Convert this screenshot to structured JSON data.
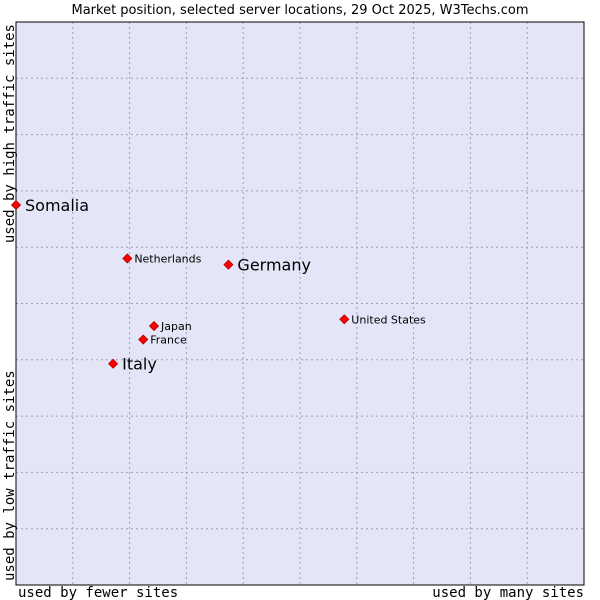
{
  "chart_data": {
    "type": "scatter",
    "title": "Market position, selected server locations, 29 Oct 2025, W3Techs.com",
    "xlabel_low": "used by fewer sites",
    "xlabel_high": "used by many sites",
    "ylabel_low": "used by low traffic sites",
    "ylabel_high": "used by high traffic sites",
    "xlim": [
      0,
      100
    ],
    "ylim": [
      0,
      100
    ],
    "grid": true,
    "colors": {
      "plot_background": "#e4e6f8",
      "grid": "#a0a0b4",
      "border": "#000000",
      "marker": "#ff0000",
      "marker_edge": "#aa0000"
    },
    "points": [
      {
        "name": "Somalia",
        "x": 0.0,
        "y": 67.5,
        "emphasis": "major"
      },
      {
        "name": "Netherlands",
        "x": 19.6,
        "y": 58.0,
        "emphasis": "minor"
      },
      {
        "name": "Germany",
        "x": 37.4,
        "y": 56.9,
        "emphasis": "major"
      },
      {
        "name": "United States",
        "x": 57.8,
        "y": 47.2,
        "emphasis": "minor"
      },
      {
        "name": "Japan",
        "x": 24.3,
        "y": 46.0,
        "emphasis": "minor"
      },
      {
        "name": "France",
        "x": 22.4,
        "y": 43.6,
        "emphasis": "minor"
      },
      {
        "name": "Italy",
        "x": 17.1,
        "y": 39.3,
        "emphasis": "major"
      }
    ]
  }
}
